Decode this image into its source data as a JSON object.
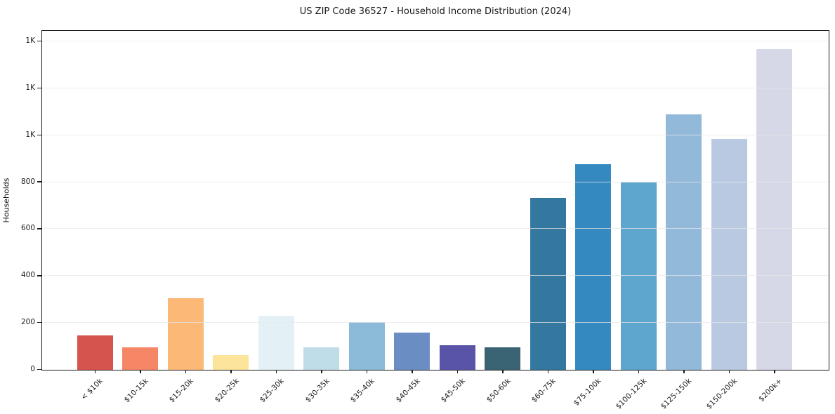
{
  "figure": {
    "background": "#ffffff"
  },
  "chart_data": {
    "type": "bar",
    "title": "US ZIP Code 36527 - Household Income Distribution (2024)",
    "xlabel": "",
    "ylabel": "Households",
    "categories": [
      "< $10k",
      "$10-15k",
      "$15-20k",
      "$20-25k",
      "$25-30k",
      "$30-35k",
      "$35-40k",
      "$40-45k",
      "$45-50k",
      "$50-60k",
      "$60-75k",
      "$75-100k",
      "$100-125k",
      "$125-150k",
      "$150-200k",
      "$200k+"
    ],
    "values": [
      147,
      97,
      305,
      62,
      232,
      96,
      204,
      160,
      106,
      96,
      734,
      877,
      800,
      1090,
      985,
      1366
    ],
    "bar_colors": [
      "#d6544e",
      "#f58767",
      "#fbb877",
      "#fde49b",
      "#e3f1f6",
      "#bedde9",
      "#8cbbd9",
      "#6a8ec3",
      "#5954a7",
      "#3a6373",
      "#35789f",
      "#3489c0",
      "#5ea6cd",
      "#92b9da",
      "#bac9e2",
      "#d7d8e7"
    ],
    "ylim": [
      0,
      1442
    ],
    "yticks": [
      {
        "value": 0,
        "label": "0"
      },
      {
        "value": 200,
        "label": "200"
      },
      {
        "value": 400,
        "label": "400"
      },
      {
        "value": 600,
        "label": "600"
      },
      {
        "value": 800,
        "label": "800"
      },
      {
        "value": 1000,
        "label": "1K"
      },
      {
        "value": 1200,
        "label": "1K"
      },
      {
        "value": 1400,
        "label": "1K"
      }
    ],
    "grid": "horizontal",
    "legend": "none",
    "grid_color": "#e7e7e7",
    "spine_color": "#1a1a1a",
    "text_color": "#1a1a1a"
  }
}
